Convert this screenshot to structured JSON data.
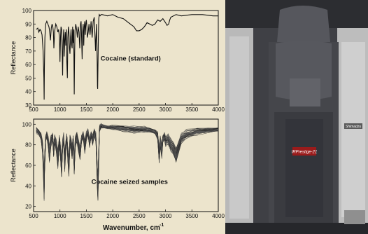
{
  "chart_data": [
    {
      "type": "line",
      "title": "",
      "annotation": "Cocaine (standard)",
      "xlabel": "",
      "ylabel": "Reflectance",
      "xlim": [
        500,
        4000
      ],
      "ylim": [
        30,
        100
      ],
      "xticks": [
        500,
        1000,
        1500,
        2000,
        2500,
        3000,
        3500,
        4000
      ],
      "yticks": [
        30,
        40,
        50,
        60,
        70,
        80,
        90,
        100
      ],
      "grid": false,
      "series": [
        {
          "x": [
            550,
            580,
            600,
            620,
            640,
            660,
            680,
            695,
            700,
            705,
            715,
            730,
            750,
            770,
            790,
            800,
            810,
            820,
            835,
            850,
            865,
            875,
            885,
            900,
            920,
            940,
            960,
            975,
            990,
            1000,
            1010,
            1020,
            1030,
            1040,
            1050,
            1060,
            1072,
            1080,
            1090,
            1100,
            1110,
            1120,
            1130,
            1140,
            1150,
            1160,
            1170,
            1180,
            1190,
            1200,
            1210,
            1220,
            1230,
            1240,
            1250,
            1260,
            1270,
            1275,
            1285,
            1300,
            1315,
            1330,
            1345,
            1360,
            1375,
            1390,
            1400,
            1410,
            1420,
            1430,
            1440,
            1450,
            1460,
            1470,
            1480,
            1490,
            1500,
            1510,
            1520,
            1535,
            1550,
            1570,
            1590,
            1610,
            1630,
            1650,
            1660,
            1675,
            1690,
            1700,
            1705,
            1710,
            1715,
            1720,
            1728,
            1735,
            1745,
            1760,
            1780,
            1800,
            1900,
            2000,
            2100,
            2200,
            2300,
            2400,
            2450,
            2500,
            2550,
            2600,
            2650,
            2700,
            2750,
            2800,
            2850,
            2900,
            2950,
            3000,
            3030,
            3060,
            3080,
            3100,
            3200,
            3300,
            3500,
            3700,
            3900,
            4000
          ],
          "y": [
            86,
            87,
            84,
            86,
            85,
            82,
            70,
            50,
            34,
            58,
            80,
            90,
            92,
            90,
            88,
            86,
            82,
            78,
            87,
            90,
            88,
            84,
            72,
            85,
            90,
            88,
            84,
            86,
            80,
            62,
            80,
            88,
            86,
            74,
            52,
            78,
            86,
            66,
            78,
            84,
            74,
            86,
            62,
            50,
            80,
            88,
            84,
            72,
            68,
            80,
            86,
            75,
            72,
            88,
            76,
            86,
            38,
            60,
            85,
            90,
            86,
            80,
            88,
            84,
            72,
            90,
            92,
            80,
            64,
            84,
            90,
            74,
            88,
            92,
            82,
            90,
            93,
            88,
            80,
            84,
            90,
            82,
            92,
            80,
            92,
            95,
            84,
            70,
            90,
            76,
            62,
            44,
            42,
            58,
            80,
            94,
            97,
            96,
            97,
            97,
            96,
            97,
            95,
            94,
            91,
            88,
            85,
            85,
            86,
            88,
            91,
            90,
            89,
            90,
            93,
            92,
            94,
            91,
            89,
            90,
            93,
            95,
            97,
            96,
            97,
            97,
            96,
            96
          ]
        }
      ]
    },
    {
      "type": "line",
      "title": "",
      "annotation": "Cocaine seized samples",
      "xlabel": "Wavenumber, cm",
      "xlabel_superscript": "-1",
      "ylabel": "Reflectance",
      "xlim": [
        500,
        4000
      ],
      "ylim": [
        15,
        105
      ],
      "xticks": [
        500,
        1000,
        1500,
        2000,
        2500,
        3000,
        3500,
        4000
      ],
      "yticks": [
        20,
        40,
        60,
        80,
        100
      ],
      "grid": false,
      "note": "Bundle of many overlaid spectra (approx. 35 samples) in dark grey/black",
      "series": [
        {
          "x": [
            550,
            600,
            640,
            670,
            690,
            700,
            710,
            730,
            750,
            780,
            800,
            830,
            860,
            880,
            900,
            930,
            960,
            990,
            1010,
            1030,
            1050,
            1070,
            1090,
            1110,
            1130,
            1150,
            1170,
            1190,
            1210,
            1230,
            1250,
            1270,
            1290,
            1320,
            1350,
            1380,
            1410,
            1440,
            1470,
            1500,
            1530,
            1560,
            1590,
            1620,
            1650,
            1680,
            1700,
            1710,
            1720,
            1735,
            1750,
            1780,
            1800,
            1900,
            2000,
            2200,
            2400,
            2600,
            2700,
            2800,
            2850,
            2880,
            2900,
            2930,
            2950,
            2980,
            3000,
            3050,
            3100,
            3150,
            3200,
            3250,
            3300,
            3400,
            3600,
            3800,
            4000
          ],
          "y": [
            94,
            92,
            88,
            78,
            55,
            40,
            62,
            86,
            90,
            82,
            70,
            84,
            88,
            74,
            86,
            80,
            66,
            84,
            72,
            58,
            80,
            86,
            64,
            78,
            88,
            70,
            60,
            84,
            80,
            72,
            86,
            60,
            82,
            88,
            80,
            72,
            86,
            90,
            78,
            88,
            92,
            82,
            90,
            84,
            92,
            88,
            62,
            45,
            40,
            70,
            96,
            98,
            98,
            97,
            97,
            96,
            95,
            95,
            94,
            93,
            89,
            70,
            82,
            74,
            86,
            88,
            84,
            86,
            80,
            76,
            70,
            78,
            86,
            90,
            93,
            94,
            95
          ]
        }
      ]
    }
  ],
  "photo": {
    "description_labels": {
      "badge": "IRPrestige-21",
      "side_badge": "Shimadzu"
    }
  }
}
